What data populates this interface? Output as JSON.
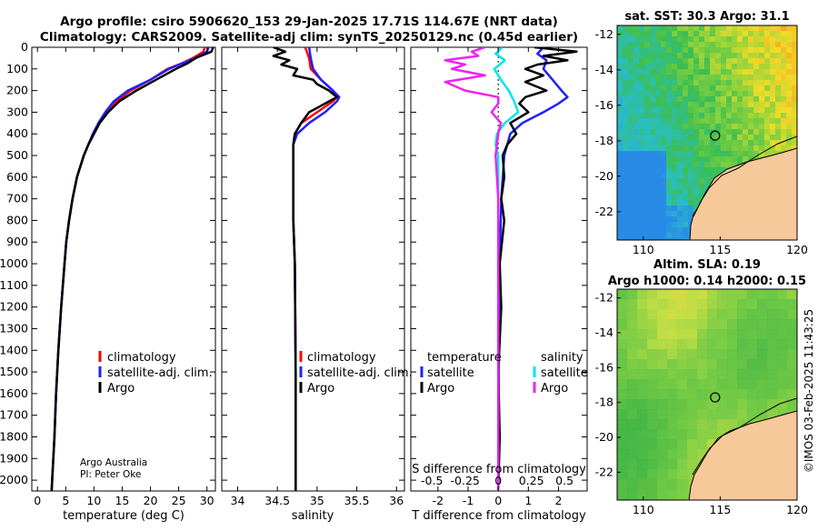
{
  "header": {
    "line1": "Argo profile: csiro 5906620_153 29-Jan-2025 17.71S 114.67E (NRT data)",
    "line2": "Climatology: CARS2009. Satellite-adj clim: synTS_20250129.nc (0.45d earlier)"
  },
  "colors": {
    "clim": "#ff0000",
    "sat": "#1f1fff",
    "argo": "#000000",
    "sal_sat": "#00e5ee",
    "sal_argo": "#ee22ee",
    "land": "#f7c89a"
  },
  "depth_axis": {
    "ticks": [
      0,
      100,
      200,
      300,
      400,
      500,
      600,
      700,
      800,
      900,
      1000,
      1100,
      1200,
      1300,
      1400,
      1500,
      1600,
      1700,
      1800,
      1900,
      2000
    ],
    "range": [
      0,
      2050
    ]
  },
  "chart_data": [
    {
      "type": "line",
      "id": "temperature",
      "xlabel": "temperature (deg C)",
      "xlim": [
        -1,
        31.5
      ],
      "xticks": [
        0,
        5,
        10,
        15,
        20,
        25,
        30
      ],
      "legend": [
        "climatology",
        "satellite-adj. clim.",
        "Argo"
      ],
      "note": [
        "Argo Australia",
        "PI: Peter Oke"
      ],
      "series": [
        {
          "name": "climatology",
          "color": "red",
          "depth": [
            0,
            20,
            50,
            75,
            100,
            150,
            200,
            250,
            300,
            350,
            400,
            450,
            500,
            600,
            700,
            800,
            900,
            1000,
            1200,
            1400,
            1600,
            1800,
            2000,
            2050
          ],
          "values": [
            29.6,
            29.4,
            27.5,
            25.5,
            23.0,
            20.0,
            16.5,
            14.0,
            12.5,
            11.0,
            10.0,
            9.0,
            8.2,
            7.0,
            6.2,
            5.6,
            5.1,
            4.8,
            4.2,
            3.7,
            3.3,
            3.0,
            2.6,
            2.5
          ]
        },
        {
          "name": "satellite-adj. clim.",
          "color": "blue",
          "depth": [
            0,
            20,
            50,
            75,
            100,
            150,
            200,
            250,
            300,
            350,
            400,
            450,
            500,
            600,
            700,
            800,
            900,
            1000,
            1200,
            1400,
            1600,
            1800,
            2000,
            2050
          ],
          "values": [
            30.3,
            30.0,
            28.0,
            25.5,
            23.3,
            20.0,
            16.0,
            13.5,
            12.0,
            10.8,
            9.8,
            9.0,
            8.2,
            7.0,
            6.2,
            5.6,
            5.1,
            4.8,
            4.2,
            3.7,
            3.3,
            3.0,
            2.6,
            2.5
          ]
        },
        {
          "name": "Argo",
          "color": "black",
          "depth": [
            0,
            20,
            50,
            75,
            100,
            150,
            200,
            250,
            300,
            350,
            400,
            450,
            500,
            600,
            700,
            800,
            900,
            1000,
            1200,
            1400,
            1600,
            1800,
            2000,
            2050
          ],
          "values": [
            31.1,
            30.8,
            28.0,
            26.5,
            24.5,
            21.0,
            17.5,
            14.5,
            12.5,
            11.0,
            10.0,
            9.0,
            8.2,
            7.0,
            6.2,
            5.6,
            5.1,
            4.8,
            4.2,
            3.7,
            3.3,
            3.0,
            2.6,
            2.5
          ]
        }
      ]
    },
    {
      "type": "line",
      "id": "salinity",
      "xlabel": "salinity",
      "xlim": [
        33.8,
        36.1
      ],
      "xticks": [
        34,
        34.5,
        35,
        35.5,
        36
      ],
      "legend": [
        "climatology",
        "satellite-adj. clim.",
        "Argo"
      ],
      "series": [
        {
          "name": "climatology",
          "color": "red",
          "depth": [
            0,
            50,
            100,
            150,
            200,
            230,
            250,
            300,
            350,
            400,
            450,
            500,
            600,
            800,
            1000,
            1500,
            2050
          ],
          "values": [
            34.85,
            34.9,
            34.92,
            35.05,
            35.2,
            35.25,
            35.2,
            35.0,
            34.8,
            34.72,
            34.7,
            34.7,
            34.7,
            34.7,
            34.72,
            34.73,
            34.73
          ]
        },
        {
          "name": "satellite-adj. clim.",
          "color": "blue",
          "depth": [
            0,
            50,
            100,
            150,
            200,
            230,
            250,
            300,
            350,
            400,
            450,
            500,
            600,
            800,
            1000,
            1500,
            2050
          ],
          "values": [
            34.9,
            34.92,
            34.95,
            35.05,
            35.2,
            35.28,
            35.25,
            35.1,
            34.9,
            34.75,
            34.7,
            34.7,
            34.7,
            34.7,
            34.72,
            34.73,
            34.73
          ]
        },
        {
          "name": "Argo",
          "color": "black",
          "depth": [
            0,
            20,
            40,
            60,
            80,
            100,
            130,
            150,
            170,
            200,
            230,
            250,
            280,
            300,
            350,
            400,
            450,
            500,
            600,
            800,
            1000,
            1500,
            2050
          ],
          "values": [
            34.45,
            34.6,
            34.45,
            34.65,
            34.55,
            34.75,
            34.7,
            34.95,
            35.0,
            35.15,
            35.25,
            35.15,
            35.0,
            34.9,
            34.8,
            34.72,
            34.7,
            34.7,
            34.7,
            34.7,
            34.72,
            34.73,
            34.73
          ]
        }
      ]
    },
    {
      "type": "line",
      "id": "difference",
      "xlabel": "T difference from climatology",
      "xlim": [
        -2.9,
        2.95
      ],
      "xticks": [
        -2,
        -1,
        0,
        1,
        2
      ],
      "sal_title": "S difference from climatology",
      "sal_ticks": [
        "-0.5",
        "-0.25",
        "0",
        "0.25",
        "0.5"
      ],
      "sal_tick_values": [
        -0.5,
        -0.25,
        0,
        0.25,
        0.5
      ],
      "temperature_legend": {
        "title": "temperature",
        "items": [
          "satellite",
          "Argo"
        ]
      },
      "salinity_legend": {
        "title": "salinity",
        "items": [
          "satellite",
          "Argo"
        ]
      },
      "series": [
        {
          "name": "T satellite",
          "color": "blue",
          "depth": [
            0,
            30,
            60,
            100,
            150,
            200,
            230,
            260,
            300,
            350,
            400,
            500,
            700,
            1000,
            1500,
            2050
          ],
          "values": [
            1.5,
            1.3,
            1.6,
            1.5,
            1.8,
            2.1,
            2.3,
            2.0,
            1.5,
            0.8,
            0.4,
            0.2,
            0.1,
            0.05,
            0.02,
            0.0
          ]
        },
        {
          "name": "T Argo",
          "color": "black",
          "depth": [
            0,
            20,
            40,
            60,
            80,
            100,
            130,
            160,
            200,
            230,
            260,
            300,
            350,
            400,
            450,
            500,
            600,
            700,
            800,
            1000,
            1200,
            1500,
            1800,
            2050
          ],
          "values": [
            1.2,
            2.6,
            1.5,
            2.3,
            1.3,
            0.9,
            1.5,
            0.9,
            1.6,
            0.9,
            0.7,
            1.0,
            0.4,
            0.6,
            0.3,
            0.15,
            0.2,
            0.1,
            0.2,
            0.05,
            0.1,
            0.0,
            0.05,
            0.0
          ]
        },
        {
          "name": "S satellite",
          "color": "cyan",
          "depth": [
            0,
            30,
            60,
            100,
            150,
            200,
            250,
            300,
            350,
            400,
            450,
            500,
            600,
            800,
            1000,
            1500,
            2050
          ],
          "values": [
            0.03,
            -0.02,
            0.05,
            -0.03,
            0.02,
            0.08,
            0.12,
            0.15,
            0.05,
            -0.01,
            -0.02,
            0.0,
            0.0,
            0.0,
            0.0,
            0.0,
            0.0
          ]
        },
        {
          "name": "S Argo",
          "color": "magenta",
          "depth": [
            0,
            20,
            40,
            60,
            80,
            100,
            130,
            160,
            200,
            230,
            260,
            300,
            350,
            400,
            500,
            700,
            1000,
            1500,
            2050
          ],
          "values": [
            -0.1,
            -0.2,
            -0.15,
            -0.4,
            -0.25,
            -0.35,
            -0.1,
            -0.4,
            -0.25,
            0.0,
            0.0,
            -0.05,
            0.02,
            0.0,
            -0.02,
            0.0,
            0.0,
            0.0,
            0.0
          ]
        }
      ]
    }
  ],
  "maps": [
    {
      "id": "sst",
      "title": "sat. SST: 30.3 Argo: 31.1",
      "lat_ticks": [
        "-12",
        "-14",
        "-16",
        "-18",
        "-20",
        "-22"
      ],
      "lon_ticks": [
        "110",
        "115",
        "120"
      ],
      "argo_lat": -17.71,
      "argo_lon": 114.67
    },
    {
      "id": "sla",
      "title1": "Altim. SLA: 0.19",
      "title2": "Argo h1000: 0.14 h2000: 0.15",
      "lat_ticks": [
        "-12",
        "-14",
        "-16",
        "-18",
        "-20",
        "-22"
      ],
      "lon_ticks": [
        "110",
        "115",
        "120"
      ],
      "argo_lat": -17.71,
      "argo_lon": 114.67
    }
  ],
  "watermark": "©IMOS 03-Feb-2025 11:43:25"
}
